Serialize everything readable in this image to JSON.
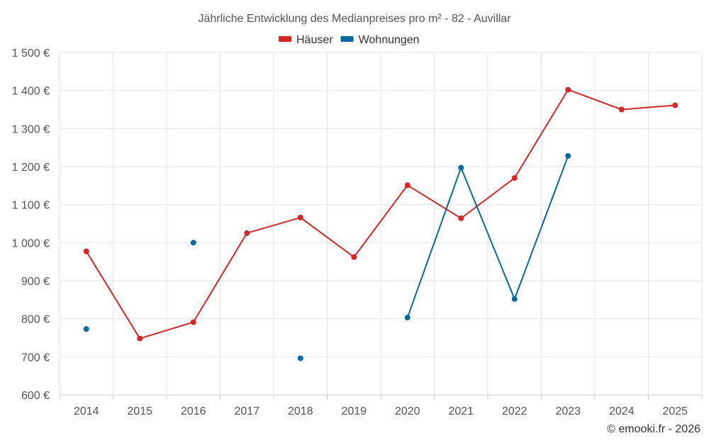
{
  "chart_data": {
    "type": "line",
    "title": "Jährliche Entwicklung des Medianpreises pro m² - 82 - Auvillar",
    "categories": [
      "2014",
      "2015",
      "2016",
      "2017",
      "2018",
      "2019",
      "2020",
      "2021",
      "2022",
      "2023",
      "2024",
      "2025"
    ],
    "ylim": [
      600,
      1500
    ],
    "yticks": [
      600,
      700,
      800,
      900,
      1000,
      1100,
      1200,
      1300,
      1400,
      1500
    ],
    "ytick_labels": [
      "600 €",
      "700 €",
      "800 €",
      "900 €",
      "1 000 €",
      "1 100 €",
      "1 200 €",
      "1 300 €",
      "1 400 €",
      "1 500 €"
    ],
    "grid": true,
    "legend_position": "top-center",
    "series": [
      {
        "name": "Häuser",
        "color": "#d62728",
        "values": [
          977,
          748,
          791,
          1025,
          1066,
          962,
          1151,
          1064,
          1170,
          1402,
          1350,
          1361
        ]
      },
      {
        "name": "Wohnungen",
        "color": "#0868a0",
        "values": [
          773,
          null,
          1000,
          null,
          696,
          null,
          803,
          1197,
          852,
          1228,
          null,
          null
        ]
      }
    ],
    "credit": "© emooki.fr - 2026"
  }
}
